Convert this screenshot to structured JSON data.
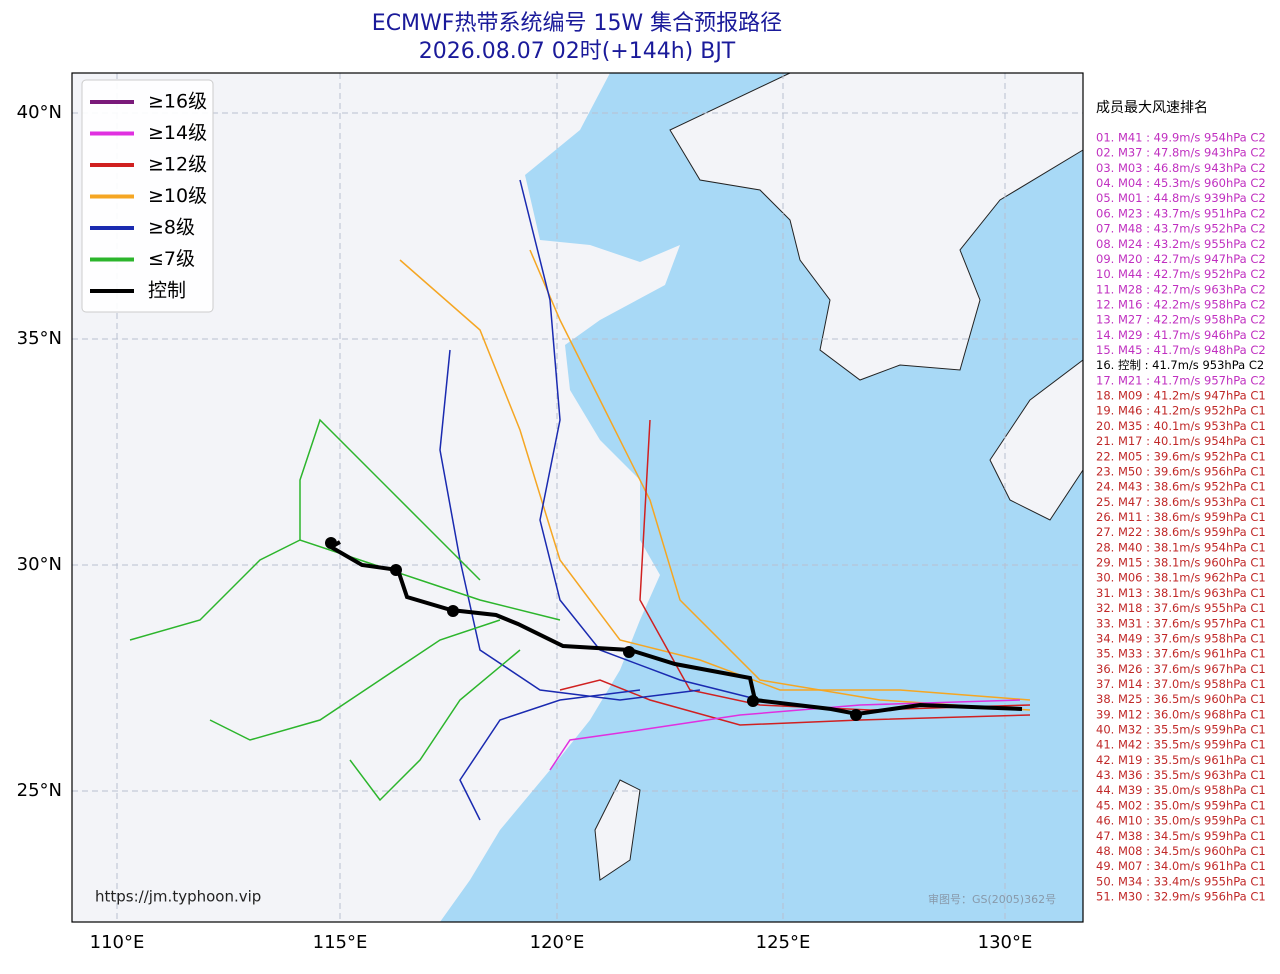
{
  "header": {
    "title": "ECMWF热带系统编号 15W 集合预报路径",
    "subtitle": "2026.08.07 02时(+144h) BJT"
  },
  "map": {
    "lon_labels": [
      "110°E",
      "115°E",
      "120°E",
      "125°E",
      "130°E"
    ],
    "lat_labels": [
      "40°N",
      "35°N",
      "30°N",
      "25°N"
    ],
    "source": "https://jm.typhoon.vip",
    "approval": "审图号：GS(2005)362号"
  },
  "legend": [
    {
      "label": "≥16级",
      "color": "#7a1a7a"
    },
    {
      "label": "≥14级",
      "color": "#e030e0"
    },
    {
      "label": "≥12级",
      "color": "#d02020"
    },
    {
      "label": "≥10级",
      "color": "#f5a623"
    },
    {
      "label": "≥8级",
      "color": "#1a2ab0"
    },
    {
      "label": "≤7级",
      "color": "#2cb52c"
    },
    {
      "label": "控制",
      "color": "#000000"
    }
  ],
  "ranking": {
    "title": "成员最大风速排名",
    "items": [
      {
        "text": "01. M41 : 49.9m/s 954hPa C2",
        "color": "#c030c0"
      },
      {
        "text": "02. M37 : 47.8m/s 943hPa C2",
        "color": "#c030c0"
      },
      {
        "text": "03. M03 : 46.8m/s 943hPa C2",
        "color": "#c030c0"
      },
      {
        "text": "04. M04 : 45.3m/s 960hPa C2",
        "color": "#c030c0"
      },
      {
        "text": "05. M01 : 44.8m/s 939hPa C2",
        "color": "#c030c0"
      },
      {
        "text": "06. M23 : 43.7m/s 951hPa C2",
        "color": "#c030c0"
      },
      {
        "text": "07. M48 : 43.7m/s 952hPa C2",
        "color": "#c030c0"
      },
      {
        "text": "08. M24 : 43.2m/s 955hPa C2",
        "color": "#c030c0"
      },
      {
        "text": "09. M20 : 42.7m/s 947hPa C2",
        "color": "#c030c0"
      },
      {
        "text": "10. M44 : 42.7m/s 952hPa C2",
        "color": "#c030c0"
      },
      {
        "text": "11. M28 : 42.7m/s 963hPa C2",
        "color": "#c030c0"
      },
      {
        "text": "12. M16 : 42.2m/s 958hPa C2",
        "color": "#c030c0"
      },
      {
        "text": "13. M27 : 42.2m/s 958hPa C2",
        "color": "#c030c0"
      },
      {
        "text": "14. M29 : 41.7m/s 946hPa C2",
        "color": "#c030c0"
      },
      {
        "text": "15. M45 : 41.7m/s 948hPa C2",
        "color": "#c030c0"
      },
      {
        "text": "16. 控制 : 41.7m/s 953hPa C2",
        "color": "#000000"
      },
      {
        "text": "17. M21 : 41.7m/s 957hPa C2",
        "color": "#c030c0"
      },
      {
        "text": "18. M09 : 41.2m/s 947hPa C1",
        "color": "#c02828"
      },
      {
        "text": "19. M46 : 41.2m/s 952hPa C1",
        "color": "#c02828"
      },
      {
        "text": "20. M35 : 40.1m/s 953hPa C1",
        "color": "#c02828"
      },
      {
        "text": "21. M17 : 40.1m/s 954hPa C1",
        "color": "#c02828"
      },
      {
        "text": "22. M05 : 39.6m/s 952hPa C1",
        "color": "#c02828"
      },
      {
        "text": "23. M50 : 39.6m/s 956hPa C1",
        "color": "#c02828"
      },
      {
        "text": "24. M43 : 38.6m/s 952hPa C1",
        "color": "#c02828"
      },
      {
        "text": "25. M47 : 38.6m/s 953hPa C1",
        "color": "#c02828"
      },
      {
        "text": "26. M11 : 38.6m/s 959hPa C1",
        "color": "#c02828"
      },
      {
        "text": "27. M22 : 38.6m/s 959hPa C1",
        "color": "#c02828"
      },
      {
        "text": "28. M40 : 38.1m/s 954hPa C1",
        "color": "#c02828"
      },
      {
        "text": "29. M15 : 38.1m/s 960hPa C1",
        "color": "#c02828"
      },
      {
        "text": "30. M06 : 38.1m/s 962hPa C1",
        "color": "#c02828"
      },
      {
        "text": "31. M13 : 38.1m/s 963hPa C1",
        "color": "#c02828"
      },
      {
        "text": "32. M18 : 37.6m/s 955hPa C1",
        "color": "#c02828"
      },
      {
        "text": "33. M31 : 37.6m/s 957hPa C1",
        "color": "#c02828"
      },
      {
        "text": "34. M49 : 37.6m/s 958hPa C1",
        "color": "#c02828"
      },
      {
        "text": "35. M33 : 37.6m/s 961hPa C1",
        "color": "#c02828"
      },
      {
        "text": "36. M26 : 37.6m/s 967hPa C1",
        "color": "#c02828"
      },
      {
        "text": "37. M14 : 37.0m/s 958hPa C1",
        "color": "#c02828"
      },
      {
        "text": "38. M25 : 36.5m/s 960hPa C1",
        "color": "#c02828"
      },
      {
        "text": "39. M12 : 36.0m/s 968hPa C1",
        "color": "#c02828"
      },
      {
        "text": "40. M32 : 35.5m/s 959hPa C1",
        "color": "#c02828"
      },
      {
        "text": "41. M42 : 35.5m/s 959hPa C1",
        "color": "#c02828"
      },
      {
        "text": "42. M19 : 35.5m/s 961hPa C1",
        "color": "#c02828"
      },
      {
        "text": "43. M36 : 35.5m/s 963hPa C1",
        "color": "#c02828"
      },
      {
        "text": "44. M39 : 35.0m/s 958hPa C1",
        "color": "#c02828"
      },
      {
        "text": "45. M02 : 35.0m/s 959hPa C1",
        "color": "#c02828"
      },
      {
        "text": "46. M10 : 35.0m/s 959hPa C1",
        "color": "#c02828"
      },
      {
        "text": "47. M38 : 34.5m/s 959hPa C1",
        "color": "#c02828"
      },
      {
        "text": "48. M08 : 34.5m/s 960hPa C1",
        "color": "#c02828"
      },
      {
        "text": "49. M07 : 34.0m/s 961hPa C1",
        "color": "#c02828"
      },
      {
        "text": "50. M34 : 33.4m/s 955hPa C1",
        "color": "#c02828"
      },
      {
        "text": "51. M30 : 32.9m/s 956hPa C1",
        "color": "#c02828"
      }
    ]
  }
}
